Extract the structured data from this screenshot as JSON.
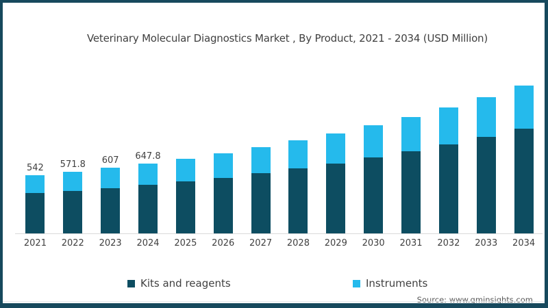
{
  "title": "Veterinary Molecular Diagnostics Market , By Product, 2021 - 2034 (USD Million)",
  "source": "Source: www.gminsights.com",
  "colors": {
    "kits": "#0d4d61",
    "instruments": "#25baec",
    "frame_border": "#17495d",
    "title_text": "#404040",
    "axis_line": "#d9d9d9",
    "source_text": "#595959"
  },
  "legend": {
    "items": [
      {
        "label": "Kits and reagents",
        "color": "#0d4d61"
      },
      {
        "label": "Instruments",
        "color": "#25baec"
      }
    ]
  },
  "chart_data": {
    "type": "bar",
    "stacked": true,
    "title": "Veterinary Molecular Diagnostics Market , By Product, 2021 - 2034 (USD Million)",
    "xlabel": "",
    "ylabel": "USD Million",
    "grid": false,
    "y_axis_visible": false,
    "legend_position": "bottom",
    "ylim": [
      0,
      1528
    ],
    "categories": [
      "2021",
      "2022",
      "2023",
      "2024",
      "2025",
      "2026",
      "2027",
      "2028",
      "2029",
      "2030",
      "2031",
      "2032",
      "2033",
      "2034"
    ],
    "series": [
      {
        "name": "Kits and reagents",
        "color": "#0d4d61",
        "values": [
          374,
          396,
          420,
          448,
          480,
          516,
          556,
          600,
          649,
          702,
          761,
          825,
          896,
          972
        ]
      },
      {
        "name": "Instruments",
        "color": "#25baec",
        "values": [
          168,
          175.8,
          187,
          199.8,
          214,
          228,
          244,
          261,
          279,
          299,
          320,
          344,
          369,
          398
        ]
      }
    ],
    "totals": [
      542,
      571.8,
      607,
      647.8,
      694,
      744,
      800,
      861,
      928,
      1001,
      1081,
      1169,
      1265,
      1370
    ],
    "visible_total_labels": [
      "542",
      "571.8",
      "607",
      "647.8",
      "",
      "",
      "",
      "",
      "",
      "",
      "",
      "",
      "",
      ""
    ]
  }
}
